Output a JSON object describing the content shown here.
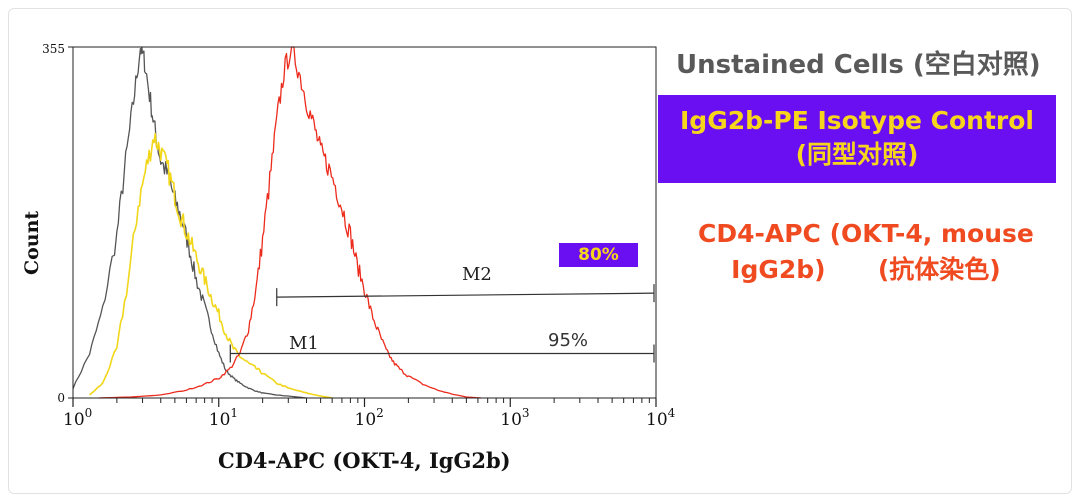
{
  "chart_data": {
    "type": "line",
    "title": "",
    "xlabel": "CD4-APC (OKT-4, IgG2b)",
    "ylabel": "Count",
    "xscale": "log",
    "xlim": [
      1,
      10000
    ],
    "ylim": [
      0,
      355
    ],
    "x_ticks": [
      {
        "value": 1,
        "base": "10",
        "exp": "0"
      },
      {
        "value": 10,
        "base": "10",
        "exp": "1"
      },
      {
        "value": 100,
        "base": "10",
        "exp": "2"
      },
      {
        "value": 1000,
        "base": "10",
        "exp": "3"
      },
      {
        "value": 10000,
        "base": "10",
        "exp": "4"
      }
    ],
    "y_ticks": [
      {
        "value": 0,
        "label": "0"
      },
      {
        "value": 355,
        "label": "355"
      }
    ],
    "series": [
      {
        "name": "Unstained Cells (空白对照)",
        "color": "#555555",
        "x": [
          1.0,
          1.3,
          1.6,
          2.0,
          2.3,
          2.6,
          2.9,
          3.1,
          3.4,
          3.7,
          4.0,
          4.5,
          5.0,
          5.6,
          6.3,
          7.0,
          7.9,
          8.9,
          10,
          11.2,
          12.6,
          14,
          16,
          18,
          20,
          25,
          30,
          40
        ],
        "y": [
          10,
          45,
          90,
          165,
          240,
          300,
          355,
          340,
          300,
          265,
          240,
          225,
          200,
          180,
          150,
          120,
          95,
          70,
          45,
          28,
          20,
          15,
          10,
          7,
          5,
          3,
          2,
          0
        ]
      },
      {
        "name": "IgG2b-PE Isotype Control (同型对照)",
        "color": "#f2d61a",
        "x": [
          1.3,
          1.6,
          2.0,
          2.4,
          2.8,
          3.2,
          3.6,
          4.0,
          4.5,
          5.0,
          5.6,
          6.3,
          7.1,
          8.0,
          9.0,
          10,
          11.2,
          12.6,
          14,
          16,
          18,
          20,
          25,
          30,
          40,
          50,
          60
        ],
        "y": [
          3,
          15,
          50,
          120,
          195,
          235,
          265,
          250,
          230,
          205,
          180,
          160,
          140,
          120,
          100,
          85,
          65,
          50,
          42,
          35,
          30,
          25,
          15,
          10,
          5,
          2,
          0
        ]
      },
      {
        "name": "CD4-APC (OKT-4, mouse IgG2b) (抗体染色)",
        "color": "#ec2b1c",
        "x": [
          1.5,
          2.5,
          4,
          6,
          8,
          10,
          12,
          14,
          16,
          18,
          20,
          22.4,
          25,
          28,
          31.6,
          35.5,
          40,
          45,
          50,
          56,
          63,
          71,
          80,
          89,
          100,
          112,
          126,
          141,
          158,
          178,
          200,
          251,
          316,
          398,
          500,
          631
        ],
        "y": [
          0,
          1,
          3,
          8,
          14,
          20,
          30,
          45,
          70,
          110,
          160,
          220,
          280,
          330,
          355,
          330,
          300,
          275,
          250,
          235,
          215,
          190,
          165,
          135,
          110,
          85,
          65,
          48,
          36,
          28,
          22,
          14,
          8,
          4,
          1,
          0
        ]
      }
    ],
    "markers": [
      {
        "name": "M1",
        "x_range": [
          12,
          10000
        ],
        "y": 45,
        "percent": "95%"
      },
      {
        "name": "M2",
        "x_range": [
          25,
          10000
        ],
        "y": 102,
        "percent": "80%"
      }
    ]
  },
  "legend": {
    "unstained": "Unstained Cells (空白对照)",
    "isotype_line1": "IgG2b-PE Isotype Control",
    "isotype_line2": "(同型对照)",
    "cd4_line1": "CD4-APC (OKT-4, mouse",
    "cd4_line2": "IgG2b)      (抗体染色)"
  },
  "colors": {
    "accent_purple": "#6a0ff2",
    "label_yellow": "#f7d51d",
    "cd4_red": "#f04a21"
  }
}
